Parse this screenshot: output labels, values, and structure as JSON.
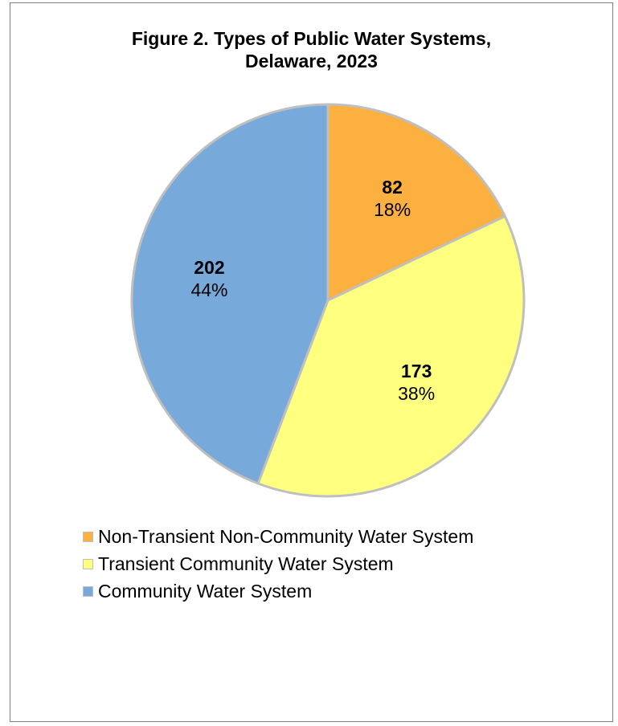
{
  "chart_data": {
    "type": "pie",
    "title_lines": [
      "Figure 2. Types of Public Water Systems,",
      "Delaware, 2023"
    ],
    "categories": [
      "Non-Transient Non-Community Water System",
      "Transient Community Water System",
      "Community Water System"
    ],
    "values": [
      82,
      173,
      202
    ],
    "percent_labels": [
      "18%",
      "38%",
      "44%"
    ],
    "colors": [
      "#FBB040",
      "#FFFF80",
      "#77A9DA"
    ],
    "slice_border_color": "#BFBFBF",
    "start_angle_deg": 0,
    "direction": "clockwise",
    "legend_placement": "bottom-left"
  }
}
